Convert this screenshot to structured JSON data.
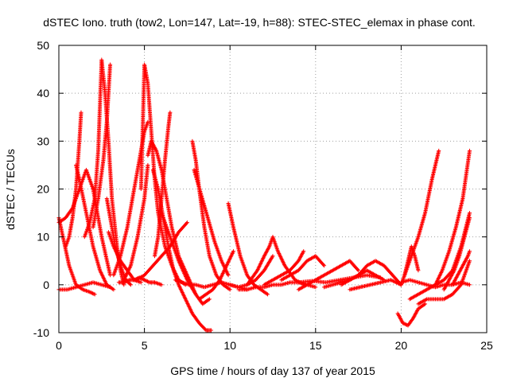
{
  "chart_data": {
    "type": "scatter",
    "title": "dSTEC Iono. truth (tow2, Lon=147, Lat=-19, h=88): STEC-STEC_elemax in phase cont.",
    "xlabel": "GPS time / hours of day 137 of year 2015",
    "ylabel": "dSTEC  / TECUs",
    "xlim": [
      0,
      25
    ],
    "ylim": [
      -10,
      50
    ],
    "xticks": [
      0,
      5,
      10,
      15,
      20,
      25
    ],
    "yticks": [
      -10,
      0,
      10,
      20,
      30,
      40,
      50
    ],
    "xtick_labels": [
      "0",
      "5",
      "10",
      "15",
      "20",
      "25"
    ],
    "ytick_labels": [
      "-10",
      "0",
      "10",
      "20",
      "30",
      "40",
      "50"
    ],
    "grid": true,
    "marker": "plus",
    "color": "#ff0000",
    "series": [
      {
        "x": [
          0.0,
          0.3,
          0.6,
          1.0,
          1.4,
          1.8,
          2.1
        ],
        "y": [
          14,
          9,
          4,
          0,
          -1,
          -1.5,
          -2
        ]
      },
      {
        "x": [
          0.0,
          0.4,
          0.8,
          1.2,
          1.6,
          2.0,
          2.5,
          3.0
        ],
        "y": [
          13,
          14,
          16,
          20,
          24,
          20,
          10,
          2
        ]
      },
      {
        "x": [
          0.0,
          0.5,
          1.0,
          1.5,
          2.0,
          2.5,
          3.0
        ],
        "y": [
          -1,
          -1,
          -0.5,
          0,
          0.5,
          0,
          -0.5
        ]
      },
      {
        "x": [
          0.4,
          0.6,
          0.8,
          1.0,
          1.2,
          1.3
        ],
        "y": [
          8,
          10,
          14,
          20,
          30,
          36
        ]
      },
      {
        "x": [
          1.0,
          1.2,
          1.6,
          2.0,
          2.4,
          2.8,
          3.2
        ],
        "y": [
          25,
          22,
          15,
          8,
          3,
          0,
          -1
        ]
      },
      {
        "x": [
          1.5,
          1.8,
          2.1,
          2.3,
          2.5,
          2.7,
          2.9,
          3.1,
          3.4,
          3.6,
          3.8
        ],
        "y": [
          10,
          13,
          18,
          28,
          47,
          40,
          30,
          18,
          8,
          3,
          0
        ]
      },
      {
        "x": [
          2.0,
          2.3,
          2.6,
          2.8,
          2.9,
          3.0
        ],
        "y": [
          12,
          18,
          26,
          34,
          40,
          46
        ]
      },
      {
        "x": [
          2.8,
          3.0,
          3.3,
          3.6,
          3.9,
          4.2
        ],
        "y": [
          18,
          14,
          8,
          4,
          1,
          0
        ]
      },
      {
        "x": [
          2.9,
          3.2,
          3.6,
          4.0,
          4.4,
          4.8
        ],
        "y": [
          11,
          8,
          5,
          3,
          1,
          0.5
        ]
      },
      {
        "x": [
          3.2,
          3.6,
          4.0,
          4.4,
          4.8,
          5.0,
          5.2
        ],
        "y": [
          2,
          6,
          12,
          20,
          28,
          32,
          34
        ]
      },
      {
        "x": [
          3.5,
          3.8,
          4.1,
          4.4,
          4.7,
          5.0,
          5.3,
          5.6,
          6.0
        ],
        "y": [
          0.5,
          0.5,
          1,
          1,
          1.5,
          1,
          0.5,
          0.5,
          0
        ]
      },
      {
        "x": [
          3.8,
          4.2,
          4.6,
          5.0,
          5.2
        ],
        "y": [
          1,
          4,
          10,
          18,
          25
        ]
      },
      {
        "x": [
          4.8,
          5.0,
          5.2,
          5.4,
          5.6,
          5.8,
          6.2,
          6.6,
          7.0,
          7.4
        ],
        "y": [
          20,
          46,
          42,
          32,
          22,
          15,
          8,
          4,
          1,
          0
        ]
      },
      {
        "x": [
          5.2,
          5.4,
          5.7,
          6.0,
          6.3,
          6.6,
          7.0,
          7.5,
          8.0
        ],
        "y": [
          27,
          30,
          28,
          24,
          18,
          12,
          6,
          2,
          -2
        ]
      },
      {
        "x": [
          5.5,
          5.8,
          6.1,
          6.4,
          6.7,
          7.0,
          7.4,
          7.8,
          8.2,
          8.6,
          8.9
        ],
        "y": [
          24,
          20,
          14,
          8,
          3,
          0,
          -3,
          -6,
          -8,
          -9.5,
          -9.5
        ]
      },
      {
        "x": [
          5.6,
          5.8,
          6.0,
          6.2,
          6.4,
          6.5
        ],
        "y": [
          6,
          10,
          18,
          26,
          33,
          36
        ]
      },
      {
        "x": [
          4.5,
          5.0,
          5.5,
          6.0,
          6.5,
          7.0,
          7.5
        ],
        "y": [
          1,
          2,
          4,
          6,
          8,
          11,
          13
        ]
      },
      {
        "x": [
          6.0,
          6.5,
          7.0,
          7.5,
          8.0,
          8.4,
          8.8
        ],
        "y": [
          15,
          10,
          5,
          1,
          -2,
          -4,
          -3
        ]
      },
      {
        "x": [
          7.8,
          8.0,
          8.2,
          8.5,
          8.8,
          9.2,
          9.6,
          10.0
        ],
        "y": [
          30,
          26,
          20,
          12,
          6,
          2,
          0,
          -1
        ]
      },
      {
        "x": [
          7.9,
          8.3,
          8.7,
          9.1,
          9.5,
          9.9
        ],
        "y": [
          24,
          19,
          14,
          9,
          5,
          2
        ]
      },
      {
        "x": [
          6.8,
          7.2,
          7.6,
          8.0,
          8.5,
          9.0,
          9.5,
          10.0,
          10.5,
          11.0
        ],
        "y": [
          1,
          0.5,
          0,
          0,
          -0.5,
          0,
          0.5,
          0,
          -0.5,
          -1
        ]
      },
      {
        "x": [
          8.2,
          8.6,
          9.0,
          9.4,
          9.8,
          10.2
        ],
        "y": [
          -3,
          -2,
          -1,
          1,
          4,
          7
        ]
      },
      {
        "x": [
          9.9,
          10.2,
          10.6,
          11.0,
          11.4,
          11.8,
          12.2
        ],
        "y": [
          17,
          12,
          6,
          2,
          0,
          -1,
          -2
        ]
      },
      {
        "x": [
          10.0,
          10.5,
          11.0,
          11.5,
          12.0,
          12.5
        ],
        "y": [
          0,
          -0.5,
          0,
          1,
          3,
          6
        ]
      },
      {
        "x": [
          11.0,
          11.6,
          12.0,
          12.3,
          12.5,
          12.8,
          13.2,
          13.8,
          14.4
        ],
        "y": [
          0,
          3,
          6,
          8,
          10,
          7,
          4,
          1,
          0
        ]
      },
      {
        "x": [
          10.5,
          11.0,
          11.5,
          12.0,
          12.5,
          13.0,
          13.5,
          14.0,
          14.5,
          15.0
        ],
        "y": [
          -1,
          -1,
          -0.5,
          -0.5,
          0,
          0,
          0.5,
          0.5,
          0,
          -0.5
        ]
      },
      {
        "x": [
          12.0,
          12.5,
          13.0,
          13.5,
          14.0,
          14.3
        ],
        "y": [
          0,
          1,
          2,
          3,
          5,
          7
        ]
      },
      {
        "x": [
          13.0,
          13.5,
          14.0,
          14.5,
          15.0,
          15.5
        ],
        "y": [
          1,
          2,
          3,
          5,
          6,
          4
        ]
      },
      {
        "x": [
          14.0,
          14.5,
          15.0,
          15.5,
          16.0,
          16.5,
          17.0,
          17.5
        ],
        "y": [
          -1,
          0,
          1,
          2,
          3,
          4,
          5,
          3
        ]
      },
      {
        "x": [
          14.0,
          14.8,
          15.6,
          16.4,
          17.2,
          18.0,
          18.8
        ],
        "y": [
          0.5,
          0.8,
          0.5,
          1,
          1.5,
          2,
          1.5
        ]
      },
      {
        "x": [
          15.5,
          16.0,
          16.5,
          17.0,
          17.5,
          18.0,
          18.5,
          19.0
        ],
        "y": [
          -0.5,
          0,
          0.5,
          1,
          2,
          3,
          2,
          1
        ]
      },
      {
        "x": [
          16.5,
          17.0,
          17.5,
          18.0,
          18.5,
          19.0,
          19.5,
          20.0
        ],
        "y": [
          0,
          1,
          2,
          4,
          5,
          4,
          2,
          0
        ]
      },
      {
        "x": [
          17.0,
          17.6,
          18.2,
          18.8,
          19.4,
          20.0
        ],
        "y": [
          -1,
          -0.5,
          0,
          0.5,
          1,
          0
        ]
      },
      {
        "x": [
          19.8,
          20.1,
          20.4,
          20.7,
          21.0,
          21.4
        ],
        "y": [
          -6,
          -8,
          -8.5,
          -7,
          -5,
          -4
        ]
      },
      {
        "x": [
          20.0,
          20.3,
          20.6,
          21.0,
          21.4,
          21.8,
          22.2
        ],
        "y": [
          0,
          3,
          6,
          10,
          15,
          22,
          28
        ]
      },
      {
        "x": [
          20.2,
          20.4,
          20.6,
          20.8,
          21.0
        ],
        "y": [
          2,
          5,
          8,
          6,
          3
        ]
      },
      {
        "x": [
          20.5,
          21.0,
          21.5,
          22.0,
          22.5,
          23.0,
          23.5,
          24.0
        ],
        "y": [
          -3,
          -2,
          -1,
          0,
          1,
          3,
          8,
          15
        ]
      },
      {
        "x": [
          20.0,
          20.5,
          21.0,
          21.5,
          22.0,
          22.5,
          23.0,
          23.5,
          24.0
        ],
        "y": [
          0.5,
          1,
          0.5,
          0,
          -0.5,
          0,
          0,
          0.5,
          0
        ]
      },
      {
        "x": [
          21.0,
          21.5,
          22.0,
          22.5,
          23.0,
          23.5,
          24.0
        ],
        "y": [
          -4,
          -3,
          -3,
          -3,
          -2,
          0,
          5
        ]
      },
      {
        "x": [
          22.0,
          22.4,
          22.8,
          23.2,
          23.6,
          24.0
        ],
        "y": [
          0,
          3,
          7,
          12,
          18,
          28
        ]
      },
      {
        "x": [
          22.5,
          22.8,
          23.1,
          23.4,
          23.7,
          24.0
        ],
        "y": [
          -1,
          1,
          3,
          6,
          10,
          14
        ]
      },
      {
        "x": [
          23.0,
          23.3,
          23.6,
          23.9,
          24.0
        ],
        "y": [
          0,
          2,
          4,
          6,
          7
        ]
      }
    ]
  }
}
